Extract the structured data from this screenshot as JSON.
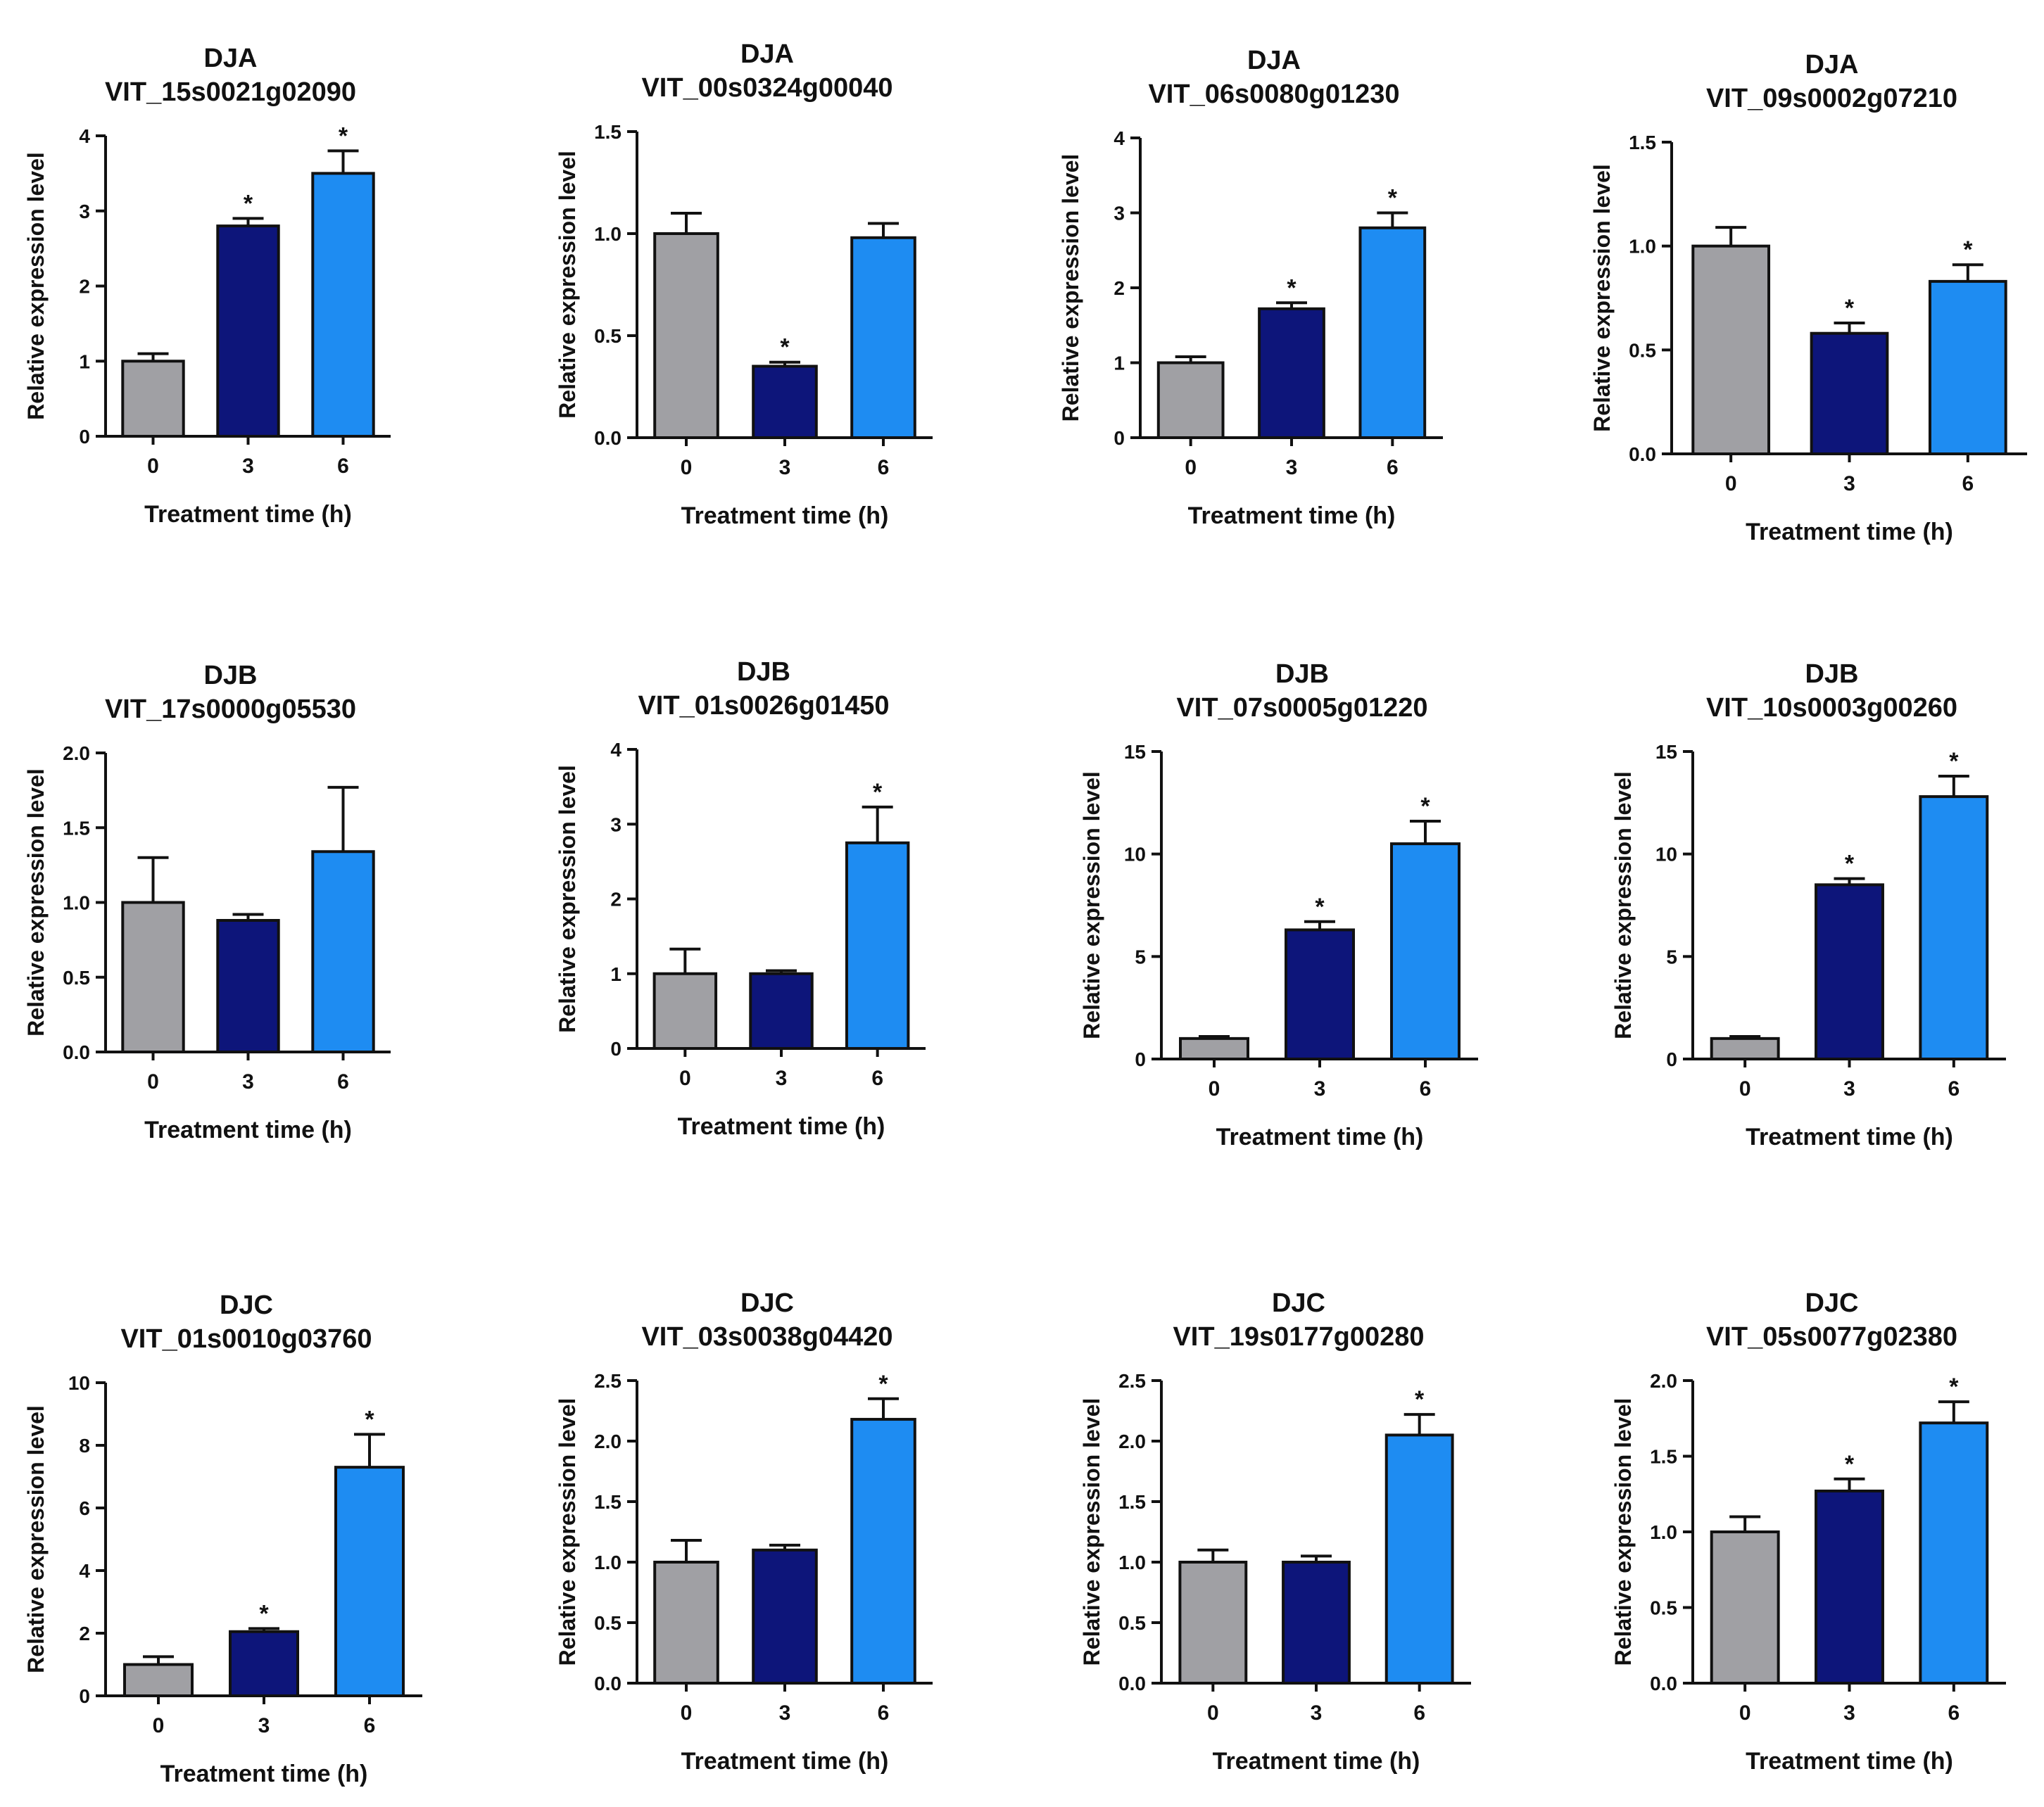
{
  "colors": {
    "bar_0h": "#a0a0a4",
    "bar_3h": "#0d157a",
    "bar_6h": "#1e8cf2",
    "axis": "#111111"
  },
  "chart_data": [
    {
      "type": "bar",
      "family": "DJA",
      "gene": "VIT_15s0021g02090",
      "categories": [
        "0",
        "3",
        "6"
      ],
      "values": [
        1.0,
        2.8,
        3.5
      ],
      "errors": [
        0.1,
        0.1,
        0.3
      ],
      "significant": [
        false,
        true,
        true
      ],
      "ylim": [
        0,
        4
      ],
      "yticks": [
        "0",
        "1",
        "2",
        "3",
        "4"
      ],
      "xlabel": "Treatment time (h)",
      "ylabel": "Relative expression level"
    },
    {
      "type": "bar",
      "family": "DJA",
      "gene": "VIT_00s0324g00040",
      "categories": [
        "0",
        "3",
        "6"
      ],
      "values": [
        1.0,
        0.35,
        0.98
      ],
      "errors": [
        0.1,
        0.02,
        0.07
      ],
      "significant": [
        false,
        true,
        false
      ],
      "ylim": [
        0,
        1.5
      ],
      "yticks": [
        "0.0",
        "0.5",
        "1.0",
        "1.5"
      ],
      "xlabel": "Treatment time (h)",
      "ylabel": "Relative expression level"
    },
    {
      "type": "bar",
      "family": "DJA",
      "gene": "VIT_06s0080g01230",
      "categories": [
        "0",
        "3",
        "6"
      ],
      "values": [
        1.0,
        1.72,
        2.8
      ],
      "errors": [
        0.08,
        0.08,
        0.2
      ],
      "significant": [
        false,
        true,
        true
      ],
      "ylim": [
        0,
        4
      ],
      "yticks": [
        "0",
        "1",
        "2",
        "3",
        "4"
      ],
      "xlabel": "Treatment time (h)",
      "ylabel": "Relative expression level"
    },
    {
      "type": "bar",
      "family": "DJA",
      "gene": "VIT_09s0002g07210",
      "categories": [
        "0",
        "3",
        "6"
      ],
      "values": [
        1.0,
        0.58,
        0.83
      ],
      "errors": [
        0.09,
        0.05,
        0.08
      ],
      "significant": [
        false,
        true,
        true
      ],
      "ylim": [
        0,
        1.5
      ],
      "yticks": [
        "0.0",
        "0.5",
        "1.0",
        "1.5"
      ],
      "xlabel": "Treatment time (h)",
      "ylabel": "Relative expression level"
    },
    {
      "type": "bar",
      "family": "DJB",
      "gene": "VIT_17s0000g05530",
      "categories": [
        "0",
        "3",
        "6"
      ],
      "values": [
        1.0,
        0.88,
        1.34
      ],
      "errors": [
        0.3,
        0.04,
        0.43
      ],
      "significant": [
        false,
        false,
        false
      ],
      "ylim": [
        0,
        2.0
      ],
      "yticks": [
        "0.0",
        "0.5",
        "1.0",
        "1.5",
        "2.0"
      ],
      "xlabel": "Treatment time (h)",
      "ylabel": "Relative expression level"
    },
    {
      "type": "bar",
      "family": "DJB",
      "gene": "VIT_01s0026g01450",
      "categories": [
        "0",
        "3",
        "6"
      ],
      "values": [
        1.0,
        1.0,
        2.75
      ],
      "errors": [
        0.33,
        0.04,
        0.48
      ],
      "significant": [
        false,
        false,
        true
      ],
      "ylim": [
        0,
        4
      ],
      "yticks": [
        "0",
        "1",
        "2",
        "3",
        "4"
      ],
      "xlabel": "Treatment time (h)",
      "ylabel": "Relative expression level"
    },
    {
      "type": "bar",
      "family": "DJB",
      "gene": "VIT_07s0005g01220",
      "categories": [
        "0",
        "3",
        "6"
      ],
      "values": [
        1.0,
        6.3,
        10.5
      ],
      "errors": [
        0.1,
        0.4,
        1.1
      ],
      "significant": [
        false,
        true,
        true
      ],
      "ylim": [
        0,
        15
      ],
      "yticks": [
        "0",
        "5",
        "10",
        "15"
      ],
      "xlabel": "Treatment time (h)",
      "ylabel": "Relative expression level"
    },
    {
      "type": "bar",
      "family": "DJB",
      "gene": "VIT_10s0003g00260",
      "categories": [
        "0",
        "3",
        "6"
      ],
      "values": [
        1.0,
        8.5,
        12.8
      ],
      "errors": [
        0.1,
        0.3,
        1.0
      ],
      "significant": [
        false,
        true,
        true
      ],
      "ylim": [
        0,
        15
      ],
      "yticks": [
        "0",
        "5",
        "10",
        "15"
      ],
      "xlabel": "Treatment time (h)",
      "ylabel": "Relative expression level"
    },
    {
      "type": "bar",
      "family": "DJC",
      "gene": "VIT_01s0010g03760",
      "categories": [
        "0",
        "3",
        "6"
      ],
      "values": [
        1.0,
        2.05,
        7.3
      ],
      "errors": [
        0.25,
        0.1,
        1.05
      ],
      "significant": [
        false,
        true,
        true
      ],
      "ylim": [
        0,
        10
      ],
      "yticks": [
        "0",
        "2",
        "4",
        "6",
        "8",
        "10"
      ],
      "xlabel": "Treatment time (h)",
      "ylabel": "Relative expression level"
    },
    {
      "type": "bar",
      "family": "DJC",
      "gene": "VIT_03s0038g04420",
      "categories": [
        "0",
        "3",
        "6"
      ],
      "values": [
        1.0,
        1.1,
        2.18
      ],
      "errors": [
        0.18,
        0.04,
        0.17
      ],
      "significant": [
        false,
        false,
        true
      ],
      "ylim": [
        0,
        2.5
      ],
      "yticks": [
        "0.0",
        "0.5",
        "1.0",
        "1.5",
        "2.0",
        "2.5"
      ],
      "xlabel": "Treatment time (h)",
      "ylabel": "Relative expression level"
    },
    {
      "type": "bar",
      "family": "DJC",
      "gene": "VIT_19s0177g00280",
      "categories": [
        "0",
        "3",
        "6"
      ],
      "values": [
        1.0,
        1.0,
        2.05
      ],
      "errors": [
        0.1,
        0.05,
        0.17
      ],
      "significant": [
        false,
        false,
        true
      ],
      "ylim": [
        0,
        2.5
      ],
      "yticks": [
        "0.0",
        "0.5",
        "1.0",
        "1.5",
        "2.0",
        "2.5"
      ],
      "xlabel": "Treatment time (h)",
      "ylabel": "Relative expression level"
    },
    {
      "type": "bar",
      "family": "DJC",
      "gene": "VIT_05s0077g02380",
      "categories": [
        "0",
        "3",
        "6"
      ],
      "values": [
        1.0,
        1.27,
        1.72
      ],
      "errors": [
        0.1,
        0.08,
        0.14
      ],
      "significant": [
        false,
        true,
        true
      ],
      "ylim": [
        0,
        2.0
      ],
      "yticks": [
        "0.0",
        "0.5",
        "1.0",
        "1.5",
        "2.0"
      ],
      "xlabel": "Treatment time (h)",
      "ylabel": "Relative expression level"
    }
  ]
}
